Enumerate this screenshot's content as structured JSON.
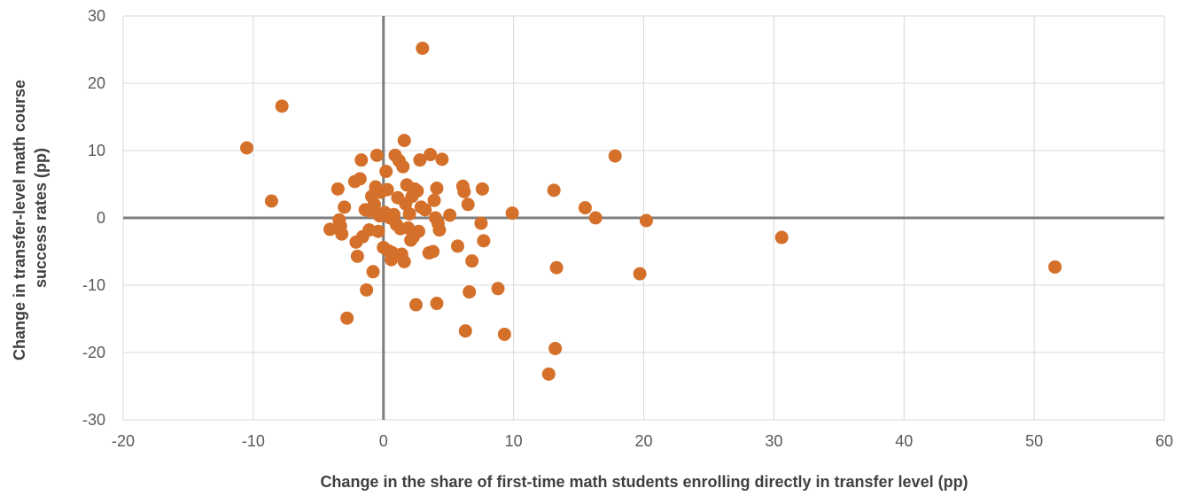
{
  "chart_data": {
    "type": "scatter",
    "title": "",
    "xlabel": "Change in the share of first-time math students enrolling directly in transfer level (pp)",
    "ylabel_lines": [
      "Change in transfer-level math course",
      "success rates (pp)"
    ],
    "xlim": [
      -20,
      60
    ],
    "ylim": [
      -30,
      30
    ],
    "xticks": [
      -20,
      -10,
      0,
      10,
      20,
      30,
      40,
      50,
      60
    ],
    "yticks": [
      -30,
      -20,
      -10,
      0,
      10,
      20,
      30
    ],
    "grid": true,
    "legend": "none",
    "marker_color": "#D4702A",
    "axis_zero_color": "#7F7F7F",
    "grid_color": "#D9D9D9",
    "points": [
      {
        "x": -10.5,
        "y": 10.4
      },
      {
        "x": -8.6,
        "y": 2.5
      },
      {
        "x": -7.8,
        "y": 16.6
      },
      {
        "x": -4.1,
        "y": -1.7
      },
      {
        "x": -3.5,
        "y": 4.3
      },
      {
        "x": -3.4,
        "y": -0.3
      },
      {
        "x": -3.3,
        "y": -1.2
      },
      {
        "x": -3.2,
        "y": -2.4
      },
      {
        "x": -3.0,
        "y": 1.6
      },
      {
        "x": -2.8,
        "y": -14.9
      },
      {
        "x": -2.2,
        "y": 5.4
      },
      {
        "x": -2.1,
        "y": -3.6
      },
      {
        "x": -2.0,
        "y": -5.7
      },
      {
        "x": -1.8,
        "y": 5.8
      },
      {
        "x": -1.7,
        "y": 8.6
      },
      {
        "x": -1.6,
        "y": -2.8
      },
      {
        "x": -1.4,
        "y": 1.2
      },
      {
        "x": -1.3,
        "y": -10.7
      },
      {
        "x": -1.1,
        "y": -1.8
      },
      {
        "x": -1.0,
        "y": 1.0
      },
      {
        "x": -0.9,
        "y": 3.2
      },
      {
        "x": -0.8,
        "y": -8.0
      },
      {
        "x": -0.7,
        "y": 2.0
      },
      {
        "x": -0.6,
        "y": 4.6
      },
      {
        "x": -0.5,
        "y": 9.3
      },
      {
        "x": -0.4,
        "y": -2.0
      },
      {
        "x": -0.3,
        "y": 0.3
      },
      {
        "x": -0.2,
        "y": 3.8
      },
      {
        "x": 0.0,
        "y": -4.4
      },
      {
        "x": 0.1,
        "y": 0.8
      },
      {
        "x": 0.2,
        "y": 6.9
      },
      {
        "x": 0.3,
        "y": 4.2
      },
      {
        "x": 0.4,
        "y": -4.9
      },
      {
        "x": 0.5,
        "y": 0.0
      },
      {
        "x": 0.6,
        "y": -6.2
      },
      {
        "x": 0.7,
        "y": -5.2
      },
      {
        "x": 0.8,
        "y": 0.5
      },
      {
        "x": 0.9,
        "y": 9.3
      },
      {
        "x": 1.0,
        "y": -1.0
      },
      {
        "x": 1.1,
        "y": 3.0
      },
      {
        "x": 1.2,
        "y": 8.5
      },
      {
        "x": 1.3,
        "y": -1.6
      },
      {
        "x": 1.4,
        "y": -5.4
      },
      {
        "x": 1.5,
        "y": 7.6
      },
      {
        "x": 1.6,
        "y": -6.5
      },
      {
        "x": 1.6,
        "y": 11.5
      },
      {
        "x": 1.7,
        "y": 2.1
      },
      {
        "x": 1.8,
        "y": 4.9
      },
      {
        "x": 1.9,
        "y": -1.5
      },
      {
        "x": 2.0,
        "y": 0.6
      },
      {
        "x": 2.1,
        "y": -3.3
      },
      {
        "x": 2.2,
        "y": 3.2
      },
      {
        "x": 2.3,
        "y": -2.8
      },
      {
        "x": 2.4,
        "y": 4.3
      },
      {
        "x": 2.5,
        "y": -12.9
      },
      {
        "x": 2.6,
        "y": 4.0
      },
      {
        "x": 2.7,
        "y": -2.0
      },
      {
        "x": 2.8,
        "y": 8.6
      },
      {
        "x": 2.9,
        "y": 1.6
      },
      {
        "x": 3.0,
        "y": 25.2
      },
      {
        "x": 3.2,
        "y": 1.2
      },
      {
        "x": 3.5,
        "y": -5.2
      },
      {
        "x": 3.6,
        "y": 9.4
      },
      {
        "x": 3.8,
        "y": -5.0
      },
      {
        "x": 3.9,
        "y": 2.6
      },
      {
        "x": 4.0,
        "y": 0.0
      },
      {
        "x": 4.1,
        "y": 4.4
      },
      {
        "x": 4.1,
        "y": -12.7
      },
      {
        "x": 4.2,
        "y": -0.8
      },
      {
        "x": 4.3,
        "y": -1.8
      },
      {
        "x": 4.5,
        "y": 8.7
      },
      {
        "x": 5.1,
        "y": 0.4
      },
      {
        "x": 5.7,
        "y": -4.2
      },
      {
        "x": 6.1,
        "y": 4.7
      },
      {
        "x": 6.2,
        "y": 3.9
      },
      {
        "x": 6.3,
        "y": -16.8
      },
      {
        "x": 6.5,
        "y": 2.0
      },
      {
        "x": 6.6,
        "y": -11.0
      },
      {
        "x": 6.8,
        "y": -6.4
      },
      {
        "x": 7.5,
        "y": -0.8
      },
      {
        "x": 7.6,
        "y": 4.3
      },
      {
        "x": 7.7,
        "y": -3.4
      },
      {
        "x": 8.8,
        "y": -10.5
      },
      {
        "x": 9.3,
        "y": -17.3
      },
      {
        "x": 9.9,
        "y": 0.7
      },
      {
        "x": 12.7,
        "y": -23.2
      },
      {
        "x": 13.1,
        "y": 4.1
      },
      {
        "x": 13.2,
        "y": -19.4
      },
      {
        "x": 13.3,
        "y": -7.4
      },
      {
        "x": 15.5,
        "y": 1.5
      },
      {
        "x": 16.3,
        "y": 0.0
      },
      {
        "x": 17.8,
        "y": 9.2
      },
      {
        "x": 19.7,
        "y": -8.3
      },
      {
        "x": 20.2,
        "y": -0.4
      },
      {
        "x": 30.6,
        "y": -2.9
      },
      {
        "x": 51.6,
        "y": -7.3
      }
    ]
  }
}
